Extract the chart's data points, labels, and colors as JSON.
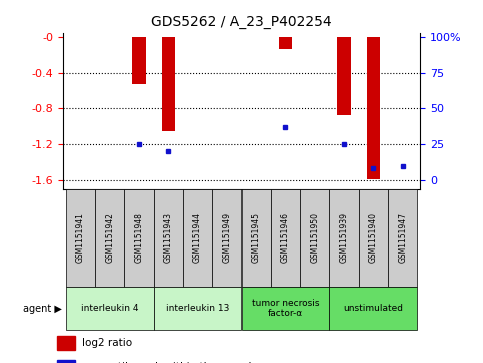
{
  "title": "GDS5262 / A_23_P402254",
  "samples": [
    "GSM1151941",
    "GSM1151942",
    "GSM1151948",
    "GSM1151943",
    "GSM1151944",
    "GSM1151949",
    "GSM1151945",
    "GSM1151946",
    "GSM1151950",
    "GSM1151939",
    "GSM1151940",
    "GSM1151947"
  ],
  "log2_ratio": [
    0,
    0,
    -0.52,
    -1.05,
    0,
    0,
    0,
    -0.13,
    0,
    -0.87,
    -1.59,
    0
  ],
  "percentile_rank": [
    null,
    null,
    25,
    20,
    null,
    null,
    null,
    37,
    null,
    25,
    8,
    10
  ],
  "agents": [
    {
      "label": "interleukin 4",
      "start": 0,
      "end": 2,
      "color": "#c8f5c8"
    },
    {
      "label": "interleukin 13",
      "start": 3,
      "end": 5,
      "color": "#c8f5c8"
    },
    {
      "label": "tumor necrosis\nfactor-α",
      "start": 6,
      "end": 8,
      "color": "#66dd66"
    },
    {
      "label": "unstimulated",
      "start": 9,
      "end": 11,
      "color": "#66dd66"
    }
  ],
  "ylim_left": [
    -1.7,
    0.05
  ],
  "ylim_right": [
    -1.7,
    0.05
  ],
  "yticks_left": [
    0,
    -0.4,
    -0.8,
    -1.2,
    -1.6
  ],
  "yticks_right_vals": [
    0,
    25,
    50,
    75,
    100
  ],
  "yticks_right_pos": [
    0,
    -0.4,
    -0.8,
    -1.2,
    -1.6
  ],
  "bar_color": "#cc0000",
  "dot_color": "#1111cc",
  "bg_color": "#ffffff",
  "sample_bg": "#cccccc"
}
